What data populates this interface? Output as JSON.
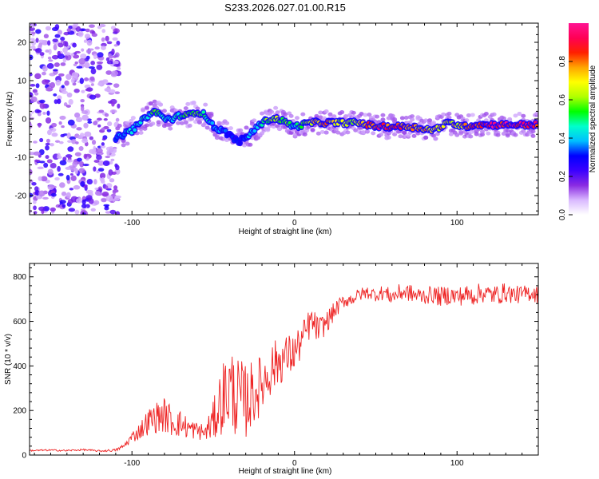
{
  "figure": {
    "title": "S233.2026.027.01.00.R15"
  },
  "chart_data": [
    {
      "type": "heatmap",
      "title": "S233.2026.027.01.00.R15",
      "xlabel": "Height of straight line (km)",
      "ylabel": "Frequency (Hz)",
      "xlim": [
        -163,
        150
      ],
      "ylim": [
        -25,
        25
      ],
      "x_ticks": [
        -100,
        0,
        100
      ],
      "y_ticks": [
        -20,
        -10,
        0,
        10,
        20
      ],
      "x_tick_labels": [
        "-100",
        "0",
        "100"
      ],
      "y_tick_labels": [
        "-20",
        "-10",
        "0",
        "10",
        "20"
      ],
      "colorbar": {
        "label": "Normalized spectral amplitude",
        "range": [
          0,
          1
        ],
        "ticks": [
          0.0,
          0.2,
          0.4,
          0.6,
          0.8
        ],
        "tick_labels": [
          "0.0",
          "0.2",
          "0.4",
          "0.6",
          "0.8"
        ],
        "colors": [
          "#ffffff",
          "#d9b8ff",
          "#8a2be2",
          "#3b00ff",
          "#0000ff",
          "#00bfff",
          "#00ffcc",
          "#00ff00",
          "#b0ff00",
          "#ffff00",
          "#ffa500",
          "#ff2000",
          "#ff0055",
          "#ff1493"
        ]
      },
      "ridge": {
        "x": [
          -110,
          -105,
          -100,
          -95,
          -90,
          -85,
          -80,
          -75,
          -70,
          -65,
          -60,
          -55,
          -50,
          -45,
          -40,
          -35,
          -30,
          -25,
          -20,
          -15,
          -10,
          -5,
          0,
          10,
          20,
          30,
          40,
          50,
          60,
          70,
          80,
          85,
          90,
          95,
          100,
          105,
          110,
          120,
          130,
          140,
          150
        ],
        "y": [
          -5,
          -4,
          -3,
          -1,
          1,
          2,
          0,
          0,
          1,
          1,
          2,
          1,
          -2,
          -3,
          -4,
          -6,
          -5,
          -3,
          -1,
          0,
          0,
          -1,
          -2,
          -1,
          -1,
          -1,
          -1,
          -2,
          -2,
          -2,
          -2.5,
          -3,
          -2,
          -1,
          -1.5,
          -2,
          -1.5,
          -1.5,
          -1.5,
          -1.5,
          -1.5
        ],
        "amplitude": [
          0.35,
          0.4,
          0.45,
          0.45,
          0.5,
          0.55,
          0.45,
          0.45,
          0.5,
          0.55,
          0.6,
          0.5,
          0.4,
          0.35,
          0.3,
          0.3,
          0.35,
          0.45,
          0.5,
          0.6,
          0.65,
          0.55,
          0.45,
          0.7,
          0.8,
          0.65,
          0.7,
          0.9,
          0.9,
          0.85,
          0.75,
          0.7,
          0.75,
          0.7,
          0.7,
          0.8,
          0.85,
          0.95,
          0.95,
          0.95,
          0.95
        ]
      },
      "noise_region_x": [
        -163,
        -108
      ]
    },
    {
      "type": "line",
      "xlabel": "Height of straight line (km)",
      "ylabel": "SNR (10 * v/v)",
      "xlim": [
        -163,
        150
      ],
      "ylim": [
        0,
        860
      ],
      "x_ticks": [
        -100,
        0,
        100
      ],
      "y_ticks": [
        0,
        200,
        400,
        600,
        800
      ],
      "x_tick_labels": [
        "-100",
        "0",
        "100"
      ],
      "y_tick_labels": [
        "0",
        "200",
        "400",
        "600",
        "800"
      ],
      "series": [
        {
          "name": "SNR",
          "color": "#ee2222",
          "x": [
            -163,
            -150,
            -140,
            -130,
            -120,
            -110,
            -105,
            -100,
            -95,
            -90,
            -85,
            -80,
            -75,
            -70,
            -65,
            -60,
            -55,
            -50,
            -45,
            -40,
            -35,
            -30,
            -25,
            -20,
            -15,
            -10,
            -5,
            0,
            5,
            10,
            15,
            20,
            25,
            30,
            35,
            40,
            45,
            50,
            55,
            60,
            65,
            70,
            75,
            80,
            85,
            90,
            95,
            100,
            105,
            110,
            115,
            120,
            125,
            130,
            135,
            140,
            145,
            150
          ],
          "values": [
            20,
            22,
            20,
            24,
            18,
            22,
            40,
            80,
            110,
            150,
            170,
            180,
            150,
            140,
            120,
            110,
            100,
            150,
            250,
            300,
            260,
            240,
            280,
            320,
            380,
            420,
            440,
            460,
            520,
            600,
            560,
            600,
            650,
            690,
            700,
            720,
            730,
            720,
            730,
            710,
            730,
            730,
            715,
            715,
            720,
            710,
            720,
            710,
            720,
            715,
            730,
            720,
            720,
            730,
            720,
            720,
            730,
            720
          ],
          "jitter": [
            4,
            4,
            4,
            4,
            4,
            6,
            10,
            25,
            40,
            60,
            70,
            80,
            70,
            60,
            50,
            40,
            40,
            90,
            160,
            200,
            180,
            170,
            150,
            130,
            120,
            110,
            100,
            90,
            80,
            70,
            60,
            50,
            40,
            30,
            30,
            30,
            30,
            30,
            35,
            35,
            40,
            40,
            40,
            40,
            40,
            45,
            45,
            45,
            45,
            45,
            45,
            45,
            45,
            45,
            40,
            40,
            40,
            40
          ]
        }
      ]
    }
  ]
}
